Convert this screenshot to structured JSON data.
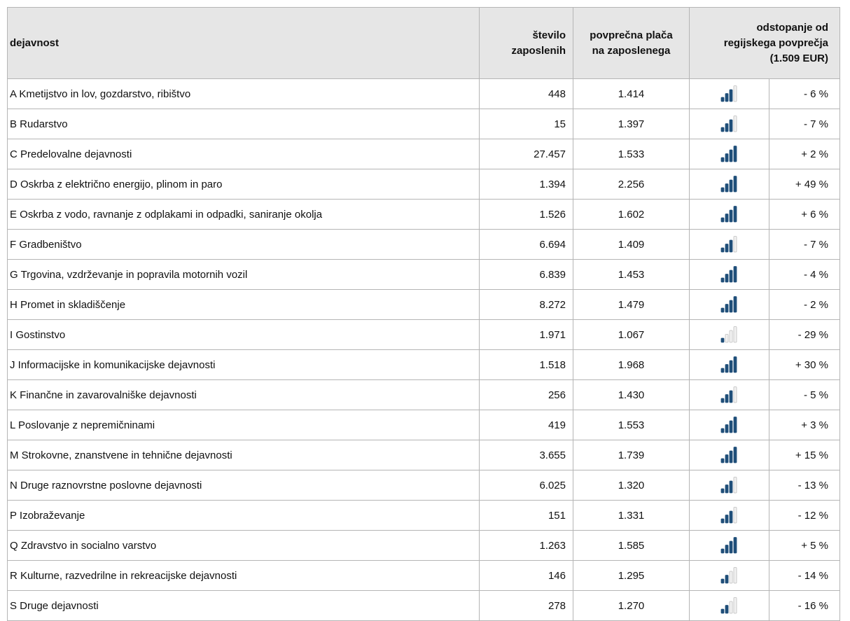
{
  "table": {
    "header": {
      "name": "dejavnost",
      "employees": [
        "število",
        "zaposlenih"
      ],
      "salary": [
        "povprečna plača",
        "na zaposlenega"
      ],
      "deviation": [
        "odstopanje od",
        "regijskega povprečja",
        "(1.509 EUR)"
      ]
    },
    "rows": [
      {
        "name": "A Kmetijstvo in lov, gozdarstvo, ribištvo",
        "employees": "448",
        "salary": "1.414",
        "bars": 3,
        "deviation": "- 6 %"
      },
      {
        "name": "B Rudarstvo",
        "employees": "15",
        "salary": "1.397",
        "bars": 3,
        "deviation": "- 7 %"
      },
      {
        "name": "C Predelovalne dejavnosti",
        "employees": "27.457",
        "salary": "1.533",
        "bars": 4,
        "deviation": "+ 2 %"
      },
      {
        "name": "D Oskrba z električno energijo, plinom in paro",
        "employees": "1.394",
        "salary": "2.256",
        "bars": 4,
        "deviation": "+ 49 %"
      },
      {
        "name": "E Oskrba z vodo, ravnanje z odplakami in odpadki, saniranje okolja",
        "employees": "1.526",
        "salary": "1.602",
        "bars": 4,
        "deviation": "+ 6 %"
      },
      {
        "name": "F Gradbeništvo",
        "employees": "6.694",
        "salary": "1.409",
        "bars": 3,
        "deviation": "- 7 %"
      },
      {
        "name": "G Trgovina, vzdrževanje in popravila motornih vozil",
        "employees": "6.839",
        "salary": "1.453",
        "bars": 4,
        "deviation": "- 4 %"
      },
      {
        "name": "H Promet in skladiščenje",
        "employees": "8.272",
        "salary": "1.479",
        "bars": 4,
        "deviation": "- 2 %"
      },
      {
        "name": "I Gostinstvo",
        "employees": "1.971",
        "salary": "1.067",
        "bars": 1,
        "deviation": "- 29 %"
      },
      {
        "name": "J Informacijske in komunikacijske dejavnosti",
        "employees": "1.518",
        "salary": "1.968",
        "bars": 4,
        "deviation": "+ 30 %"
      },
      {
        "name": "K Finančne in zavarovalniške dejavnosti",
        "employees": "256",
        "salary": "1.430",
        "bars": 3,
        "deviation": "- 5 %"
      },
      {
        "name": "L Poslovanje z nepremičninami",
        "employees": "419",
        "salary": "1.553",
        "bars": 4,
        "deviation": "+ 3 %"
      },
      {
        "name": "M Strokovne, znanstvene in tehnične dejavnosti",
        "employees": "3.655",
        "salary": "1.739",
        "bars": 4,
        "deviation": "+ 15 %"
      },
      {
        "name": "N Druge raznovrstne poslovne dejavnosti",
        "employees": "6.025",
        "salary": "1.320",
        "bars": 3,
        "deviation": "- 13 %"
      },
      {
        "name": "P Izobraževanje",
        "employees": "151",
        "salary": "1.331",
        "bars": 3,
        "deviation": "- 12 %"
      },
      {
        "name": "Q Zdravstvo in socialno varstvo",
        "employees": "1.263",
        "salary": "1.585",
        "bars": 4,
        "deviation": "+ 5 %"
      },
      {
        "name": "R Kulturne, razvedrilne in rekreacijske dejavnosti",
        "employees": "146",
        "salary": "1.295",
        "bars": 2,
        "deviation": "- 14 %"
      },
      {
        "name": "S Druge dejavnosti",
        "employees": "278",
        "salary": "1.270",
        "bars": 2,
        "deviation": "- 16 %"
      }
    ]
  }
}
